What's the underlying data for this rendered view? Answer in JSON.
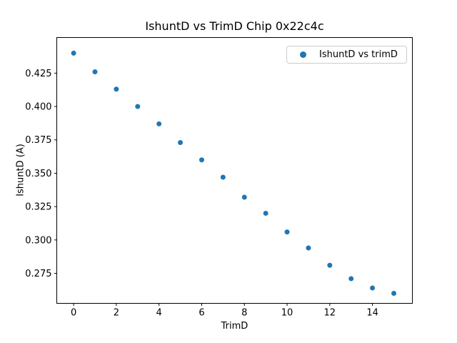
{
  "figure": {
    "background": "#ffffff",
    "spine_color": "#000000",
    "tick_label_color": "#000000"
  },
  "chart_data": {
    "type": "scatter",
    "title": "IshuntD vs TrimD Chip 0x22c4c",
    "xlabel": "TrimD",
    "ylabel": "IshuntD (A)",
    "x": [
      0,
      1,
      2,
      3,
      4,
      5,
      6,
      7,
      8,
      9,
      10,
      11,
      12,
      13,
      14,
      15
    ],
    "y": [
      0.44,
      0.426,
      0.413,
      0.4,
      0.387,
      0.373,
      0.36,
      0.347,
      0.332,
      0.32,
      0.306,
      0.294,
      0.281,
      0.271,
      0.264,
      0.26
    ],
    "series_name": "IshuntD vs trimD",
    "marker_color": "#1f77b4",
    "marker_style": "circle",
    "xlim": [
      -0.79,
      15.87
    ],
    "ylim": [
      0.2525,
      0.4517
    ],
    "xticks": [
      0,
      2,
      4,
      6,
      8,
      10,
      12,
      14
    ],
    "xtick_labels": [
      "0",
      "2",
      "4",
      "6",
      "8",
      "10",
      "12",
      "14"
    ],
    "yticks": [
      0.275,
      0.3,
      0.325,
      0.35,
      0.375,
      0.4,
      0.425
    ],
    "ytick_labels": [
      "0.275",
      "0.300",
      "0.325",
      "0.350",
      "0.375",
      "0.400",
      "0.425"
    ],
    "grid": false,
    "legend": {
      "label": "IshuntD vs trimD",
      "position": "upper right"
    }
  }
}
